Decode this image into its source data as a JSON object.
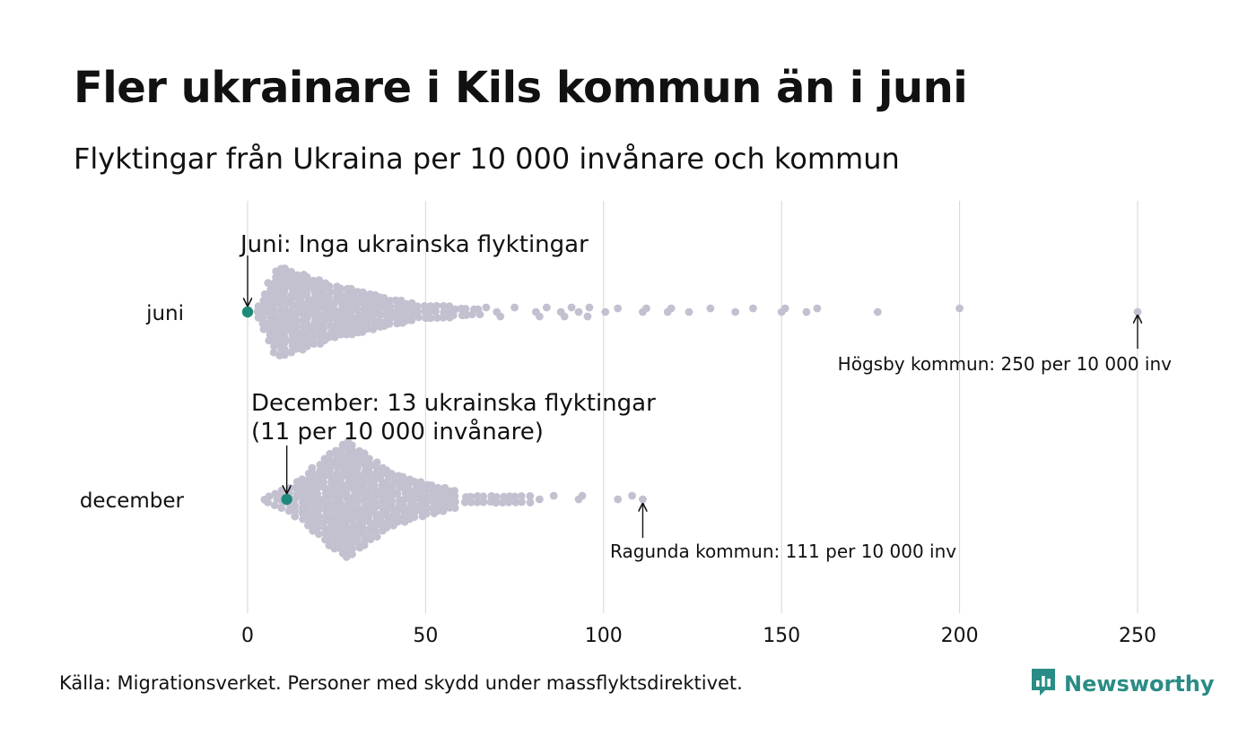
{
  "title": "Fler ukrainare i Kils kommun än i juni",
  "subtitle": "Flyktingar från Ukraina per 10 000 invånare och kommun",
  "source": "Källa: Migrationsverket. Personer med skydd under massflyktsdirektivet.",
  "brand": {
    "name": "Newsworthy",
    "icon": "newsworthy-logo-icon",
    "color": "#2a8c86"
  },
  "colors": {
    "dot": "#c3c1d0",
    "highlight": "#1f8a7c",
    "grid": "#d6d6d6",
    "text": "#111111"
  },
  "chart_data": {
    "type": "beeswarm",
    "xlim": [
      0,
      250
    ],
    "xticks": [
      "0",
      "50",
      "100",
      "150",
      "200",
      "250"
    ],
    "grid": true,
    "categories": [
      "juni",
      "december"
    ],
    "series": [
      {
        "name": "juni",
        "highlight_value": 0,
        "extremes": [
          100.5,
          104,
          111,
          112,
          118,
          119,
          124,
          130,
          137,
          142,
          150,
          151,
          157,
          160,
          177,
          200,
          250
        ],
        "annotations": [
          {
            "text": "Juni: Inga ukrainska flyktingar",
            "target": 0
          },
          {
            "text": "Högsby kommun: 250 per 10 000 inv",
            "target": 250
          }
        ]
      },
      {
        "name": "december",
        "highlight_value": 11,
        "extremes": [
          82,
          86,
          93,
          94,
          104,
          108,
          111
        ],
        "annotations": [
          {
            "text": "December: 13 ukrainska flyktingar",
            "text2": "(11 per 10 000 invånare)",
            "target": 11
          },
          {
            "text": "Ragunda kommun: 111 per 10 000 inv",
            "target": 111
          }
        ]
      }
    ]
  }
}
